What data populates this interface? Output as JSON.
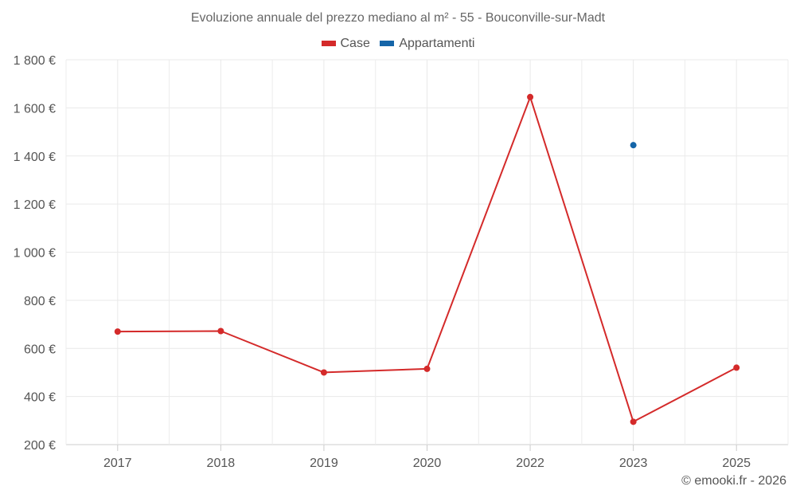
{
  "chart_data": {
    "type": "line",
    "title": "Evoluzione annuale del prezzo mediano al m² - 55 - Bouconville-sur-Madt",
    "categories": [
      "2017",
      "2018",
      "2019",
      "2020",
      "2022",
      "2023",
      "2025"
    ],
    "yticks": [
      200,
      400,
      600,
      800,
      1000,
      1200,
      1400,
      1600,
      1800
    ],
    "ytick_labels": [
      "200 €",
      "400 €",
      "600 €",
      "800 €",
      "1 000 €",
      "1 200 €",
      "1 400 €",
      "1 600 €",
      "1 800 €"
    ],
    "ylim": [
      200,
      1800
    ],
    "grid": true,
    "legend_position": "top-center",
    "series": [
      {
        "name": "Case",
        "color": "#d42a2a",
        "values": [
          670,
          672,
          500,
          515,
          1645,
          295,
          520
        ]
      },
      {
        "name": "Appartamenti",
        "color": "#1565a8",
        "values": [
          null,
          null,
          null,
          null,
          null,
          1445,
          null
        ]
      }
    ],
    "xlabel": "",
    "ylabel": ""
  },
  "footer": {
    "credit": "© emooki.fr - 2026"
  }
}
